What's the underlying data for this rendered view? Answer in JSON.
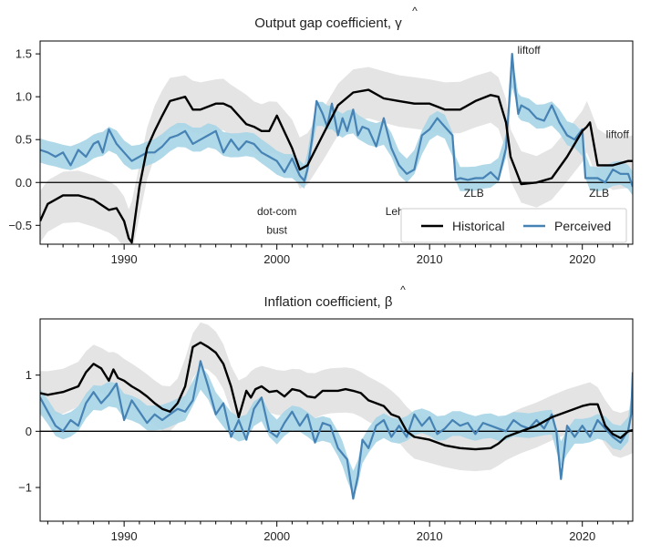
{
  "chart_data": [
    {
      "type": "line",
      "title": "Output gap coefficient, γ̂",
      "title_text": "Output gap coefficient, ",
      "title_symbol": "γ",
      "xlim": [
        1984.5,
        2023.3
      ],
      "ylim": [
        -0.72,
        1.65
      ],
      "xticks": [
        1990,
        2000,
        2010,
        2020
      ],
      "yticks": [
        -0.5,
        0.0,
        0.5,
        1.0,
        1.5
      ],
      "ytick_labels": [
        "−0.5",
        "0.0",
        "0.5",
        "1.0",
        "1.5"
      ],
      "legend": {
        "placement": "lower-right",
        "entries": [
          "Historical",
          "Perceived"
        ]
      },
      "colors": {
        "historical": "#000000",
        "perceived": "#4682b4",
        "perceived_band": "#a6d4e6",
        "historical_band": "#e4e4e4"
      },
      "annotations": [
        {
          "text": "dot-com",
          "x": 2000.0,
          "y": -0.38
        },
        {
          "text": "bust",
          "x": 2000.0,
          "y": -0.6
        },
        {
          "text": "Lehman",
          "x": 2008.4,
          "y": -0.38
        },
        {
          "text": "ZLB",
          "x": 2012.9,
          "y": -0.17
        },
        {
          "text": "ZLB",
          "x": 2021.1,
          "y": -0.17
        },
        {
          "text": "liftoff",
          "x": 2016.5,
          "y": 1.5
        },
        {
          "text": "liftoff",
          "x": 2022.3,
          "y": 0.52
        }
      ],
      "series": [
        {
          "name": "Historical",
          "x": [
            1984.5,
            1985,
            1986,
            1987,
            1988,
            1989,
            1989.5,
            1990,
            1990.3,
            1990.5,
            1991,
            1991.5,
            1992,
            1992.5,
            1993,
            1994,
            1994.5,
            1995,
            1996,
            1996.5,
            1997,
            1998,
            1998.5,
            1999,
            1999.5,
            2000,
            2001,
            2001.5,
            2002,
            2003,
            2004,
            2005,
            2006,
            2007,
            2008,
            2009,
            2010,
            2011,
            2012,
            2013,
            2014,
            2014.5,
            2015,
            2015.3,
            2016,
            2017,
            2018,
            2019,
            2020,
            2020.3,
            2020.5,
            2021,
            2022,
            2023,
            2023.3
          ],
          "y": [
            -0.45,
            -0.25,
            -0.15,
            -0.15,
            -0.2,
            -0.32,
            -0.3,
            -0.45,
            -0.65,
            -0.7,
            -0.05,
            0.4,
            0.6,
            0.78,
            0.95,
            1.0,
            0.85,
            0.85,
            0.92,
            0.92,
            0.88,
            0.68,
            0.65,
            0.6,
            0.6,
            0.78,
            0.4,
            0.15,
            0.2,
            0.55,
            0.9,
            1.05,
            1.08,
            0.98,
            0.95,
            0.92,
            0.92,
            0.85,
            0.85,
            0.95,
            1.02,
            1.0,
            0.7,
            0.3,
            -0.02,
            0.0,
            0.05,
            0.3,
            0.6,
            0.65,
            0.7,
            0.2,
            0.2,
            0.25,
            0.25
          ]
        },
        {
          "name": "Perceived",
          "x": [
            1984.5,
            1985,
            1985.5,
            1986,
            1986.5,
            1987,
            1987.5,
            1988,
            1988.3,
            1988.6,
            1989,
            1989.5,
            1990,
            1990.5,
            1991,
            1991.5,
            1992,
            1992.5,
            1993,
            1993.5,
            1994,
            1994.5,
            1995,
            1995.5,
            1996,
            1996.5,
            1997,
            1997.5,
            1998,
            1998.5,
            1999,
            1999.5,
            2000,
            2000.5,
            2001,
            2001.5,
            2001.8,
            2002,
            2002.3,
            2002.6,
            2003,
            2003.3,
            2003.6,
            2004,
            2004.3,
            2004.6,
            2005,
            2005.3,
            2005.6,
            2006,
            2006.5,
            2007,
            2007.5,
            2008,
            2008.5,
            2009,
            2009.5,
            2010,
            2010.5,
            2011,
            2011.5,
            2011.7,
            2012,
            2012.5,
            2013,
            2013.5,
            2014,
            2014.5,
            2015,
            2015.2,
            2015.4,
            2015.6,
            2015.8,
            2016,
            2016.5,
            2017,
            2017.5,
            2018,
            2018.5,
            2019,
            2019.5,
            2020,
            2020.2,
            2020.5,
            2021,
            2021.5,
            2022,
            2022.5,
            2023,
            2023.3
          ],
          "y": [
            0.38,
            0.35,
            0.3,
            0.35,
            0.2,
            0.38,
            0.3,
            0.45,
            0.48,
            0.35,
            0.62,
            0.45,
            0.35,
            0.25,
            0.3,
            0.35,
            0.35,
            0.42,
            0.52,
            0.55,
            0.6,
            0.45,
            0.5,
            0.55,
            0.6,
            0.35,
            0.5,
            0.38,
            0.48,
            0.45,
            0.35,
            0.3,
            0.25,
            0.12,
            0.28,
            0.08,
            0.02,
            0.15,
            0.5,
            0.95,
            0.8,
            0.65,
            0.92,
            0.55,
            0.75,
            0.6,
            0.85,
            0.55,
            0.65,
            0.62,
            0.42,
            0.75,
            0.4,
            0.2,
            0.1,
            0.15,
            0.55,
            0.62,
            0.75,
            0.65,
            0.55,
            0.03,
            0.05,
            0.03,
            0.05,
            0.05,
            0.12,
            0.03,
            0.4,
            0.9,
            1.5,
            1.1,
            0.8,
            0.9,
            0.85,
            0.75,
            0.72,
            0.9,
            0.7,
            0.55,
            0.5,
            0.62,
            0.05,
            0.05,
            0.05,
            0.0,
            0.15,
            0.1,
            0.1,
            -0.05
          ]
        }
      ]
    },
    {
      "type": "line",
      "title": "Inflation coefficient, β̂",
      "title_text": "Inflation coefficient, ",
      "title_symbol": "β",
      "xlim": [
        1984.5,
        2023.3
      ],
      "ylim": [
        -1.6,
        2.0
      ],
      "xticks": [
        1990,
        2000,
        2010,
        2020
      ],
      "yticks": [
        -1,
        0,
        1
      ],
      "ytick_labels": [
        "−1",
        "0",
        "1"
      ],
      "colors": {
        "historical": "#000000",
        "perceived": "#4682b4",
        "perceived_band": "#a6d4e6",
        "historical_band": "#e4e4e4"
      },
      "series": [
        {
          "name": "Historical",
          "x": [
            1984.5,
            1985,
            1986,
            1987,
            1987.5,
            1988,
            1988.5,
            1989,
            1989.3,
            1989.6,
            1990,
            1990.5,
            1991,
            1991.5,
            1992,
            1992.5,
            1993,
            1993.5,
            1994,
            1994.5,
            1995,
            1995.5,
            1996,
            1996.5,
            1997,
            1997.5,
            1998,
            1998.3,
            1998.6,
            1999,
            1999.5,
            2000,
            2000.5,
            2001,
            2001.5,
            2002,
            2002.5,
            2003,
            2003.5,
            2004,
            2004.5,
            2005,
            2005.5,
            2006,
            2006.5,
            2007,
            2007.5,
            2008,
            2008.5,
            2009,
            2010,
            2011,
            2012,
            2013,
            2014,
            2014.5,
            2015,
            2015.5,
            2016,
            2017,
            2018,
            2019,
            2020,
            2020.5,
            2021,
            2021.5,
            2022,
            2022.5,
            2023,
            2023.3
          ],
          "y": [
            0.68,
            0.65,
            0.7,
            0.8,
            1.05,
            1.2,
            1.12,
            0.9,
            1.1,
            0.95,
            0.9,
            0.8,
            0.72,
            0.62,
            0.5,
            0.4,
            0.35,
            0.5,
            0.8,
            1.5,
            1.58,
            1.5,
            1.4,
            1.2,
            0.8,
            0.25,
            0.72,
            0.6,
            0.75,
            0.8,
            0.7,
            0.72,
            0.62,
            0.75,
            0.72,
            0.62,
            0.6,
            0.72,
            0.72,
            0.72,
            0.75,
            0.72,
            0.68,
            0.55,
            0.5,
            0.45,
            0.3,
            0.25,
            0.0,
            -0.1,
            -0.15,
            -0.25,
            -0.3,
            -0.32,
            -0.3,
            -0.22,
            -0.1,
            -0.05,
            0.0,
            0.1,
            0.25,
            0.35,
            0.45,
            0.48,
            0.48,
            0.1,
            -0.05,
            -0.12,
            0.0,
            0.02
          ]
        },
        {
          "name": "Perceived",
          "x": [
            1984.5,
            1985,
            1985.5,
            1986,
            1986.5,
            1987,
            1987.5,
            1988,
            1988.5,
            1989,
            1989.5,
            1990,
            1990.5,
            1991,
            1991.5,
            1992,
            1992.5,
            1993,
            1993.5,
            1994,
            1994.5,
            1995,
            1995.5,
            1996,
            1996.5,
            1997,
            1997.5,
            1998,
            1998.5,
            1999,
            1999.5,
            2000,
            2000.5,
            2001,
            2001.5,
            2002,
            2002.5,
            2003,
            2003.5,
            2004,
            2004.3,
            2004.6,
            2005,
            2005.3,
            2005.6,
            2006,
            2006.5,
            2007,
            2007.5,
            2008,
            2008.5,
            2009,
            2009.5,
            2010,
            2010.5,
            2011,
            2011.5,
            2012,
            2012.5,
            2013,
            2013.5,
            2014,
            2014.5,
            2015,
            2015.5,
            2016,
            2016.5,
            2017,
            2017.5,
            2018,
            2018.3,
            2018.6,
            2019,
            2019.5,
            2020,
            2020.5,
            2021,
            2021.5,
            2022,
            2022.5,
            2023,
            2023.2,
            2023.3
          ],
          "y": [
            0.6,
            0.35,
            0.1,
            0.0,
            0.2,
            0.1,
            0.5,
            0.7,
            0.5,
            0.65,
            0.85,
            0.2,
            0.55,
            0.35,
            0.15,
            0.3,
            0.2,
            0.3,
            0.4,
            0.35,
            0.55,
            1.25,
            0.8,
            0.3,
            0.5,
            -0.1,
            0.2,
            -0.15,
            0.4,
            0.6,
            0.0,
            -0.1,
            0.15,
            0.35,
            0.1,
            0.3,
            -0.2,
            0.15,
            0.1,
            -0.3,
            -0.4,
            -0.5,
            -1.2,
            -0.8,
            -0.15,
            -0.3,
            0.1,
            0.2,
            -0.1,
            0.1,
            -0.1,
            0.3,
            0.1,
            0.25,
            -0.05,
            0.05,
            0.2,
            0.1,
            0.15,
            -0.05,
            0.15,
            0.1,
            0.05,
            0.0,
            0.2,
            0.1,
            0.05,
            0.2,
            0.05,
            0.3,
            0.0,
            -0.85,
            0.1,
            -0.1,
            0.1,
            -0.1,
            0.2,
            0.05,
            -0.1,
            -0.2,
            0.02,
            0.3,
            1.05
          ]
        }
      ]
    }
  ]
}
